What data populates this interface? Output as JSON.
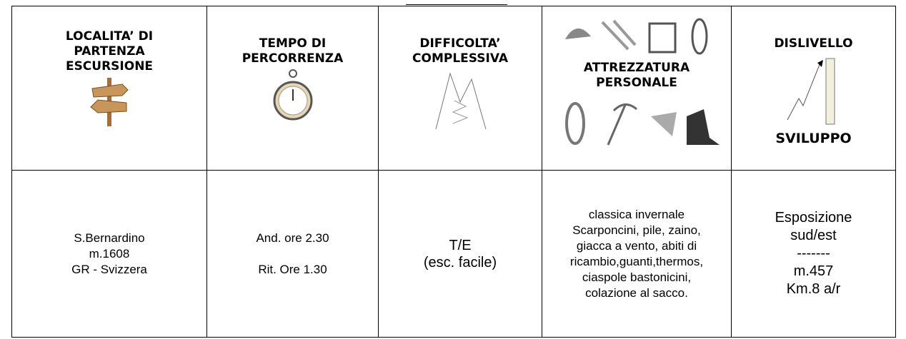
{
  "header": {
    "cells": [
      {
        "lines": [
          "LOCALITA’ DI",
          "PARTENZA",
          "ESCURSIONE"
        ]
      },
      {
        "lines": [
          "TEMPO DI",
          "PERCORRENZA"
        ]
      },
      {
        "lines": [
          "DIFFICOLTA’",
          "COMPLESSIVA"
        ]
      },
      {
        "lines": [
          "ATTREZZATURA",
          "PERSONALE"
        ]
      },
      {
        "lines": [
          "DISLIVELLO",
          "SVILUPPO"
        ]
      }
    ]
  },
  "table": {
    "rows": [
      [
        {
          "lines": [
            "S.Bernardino",
            "m.1608",
            "GR - Svizzera"
          ]
        },
        {
          "lines": [
            "And. ore 2.30",
            "Rit. Ore 1.30"
          ]
        },
        {
          "lines": [
            "T/E",
            "(esc. facile)"
          ]
        },
        {
          "lines": [
            "classica invernale",
            "Scarponcini, pile, zaino,",
            "giacca a vento, abiti di",
            "ricambio,guanti,thermos,",
            "ciaspole bastonicini,",
            "colazione al sacco."
          ]
        },
        {
          "lines": [
            "Esposizione",
            "sud/est",
            "-------",
            "m.457",
            "Km.8 a/r"
          ]
        }
      ]
    ]
  }
}
